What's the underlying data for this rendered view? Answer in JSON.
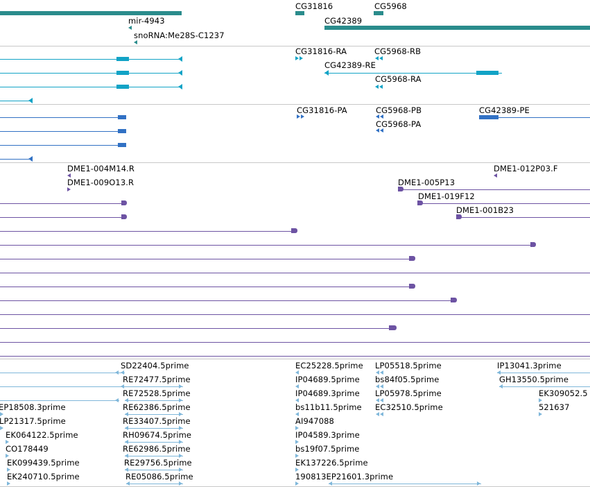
{
  "colors": {
    "gene": "#2a8c8c",
    "mrna": "#12a3c6",
    "protein": "#3171c4",
    "clone": "#6d53a3",
    "est": "#7fb7da",
    "divider": "#c8c8c8"
  },
  "tracks": {
    "genes": {
      "labels": [
        "CG31816",
        "CG5968",
        "mir-4943",
        "snoRNA:Me28S-C1237",
        "CG42389"
      ]
    },
    "transcripts": {
      "labels": [
        "CG31816-RA",
        "CG5968-RB",
        "CG42389-RE",
        "CG5968-RA"
      ]
    },
    "proteins": {
      "labels": [
        "CG31816-PA",
        "CG5968-PB",
        "CG42389-PE",
        "CG5968-PA"
      ]
    },
    "clones": {
      "labels": [
        "DME1-004M14.R",
        "DME1-012P03.F",
        "DME1-009O13.R",
        "DME1-005P13",
        "DME1-019F12",
        "DME1-001B23"
      ]
    },
    "ests": {
      "labels": [
        "SD22404.5prime",
        "EC25228.5prime",
        "LP05518.5prime",
        "IP13041.3prime",
        "RE72477.5prime",
        "IP04689.5prime",
        "bs84f05.5prime",
        "GH13550.5prime",
        "RE72528.5prime",
        "IP04689.3prime",
        "LP05978.5prime",
        "EK309052.5",
        "EP18508.3prime",
        "RE62386.5prime",
        "bs11b11.5prime",
        "EC32510.5prime",
        "521637",
        "LP21317.5prime",
        "RE33407.5prime",
        "AI947088",
        "EK064122.5prime",
        "RH09674.5prime",
        "IP04589.3prime",
        "CO178449",
        "RE62986.5prime",
        "bs19f07.5prime",
        "EK099439.5prime",
        "RE29756.5prime",
        "EK137226.5prime",
        "EK240710.5prime",
        "RE05086.5prime",
        "190813EP21601.3prime"
      ]
    }
  }
}
